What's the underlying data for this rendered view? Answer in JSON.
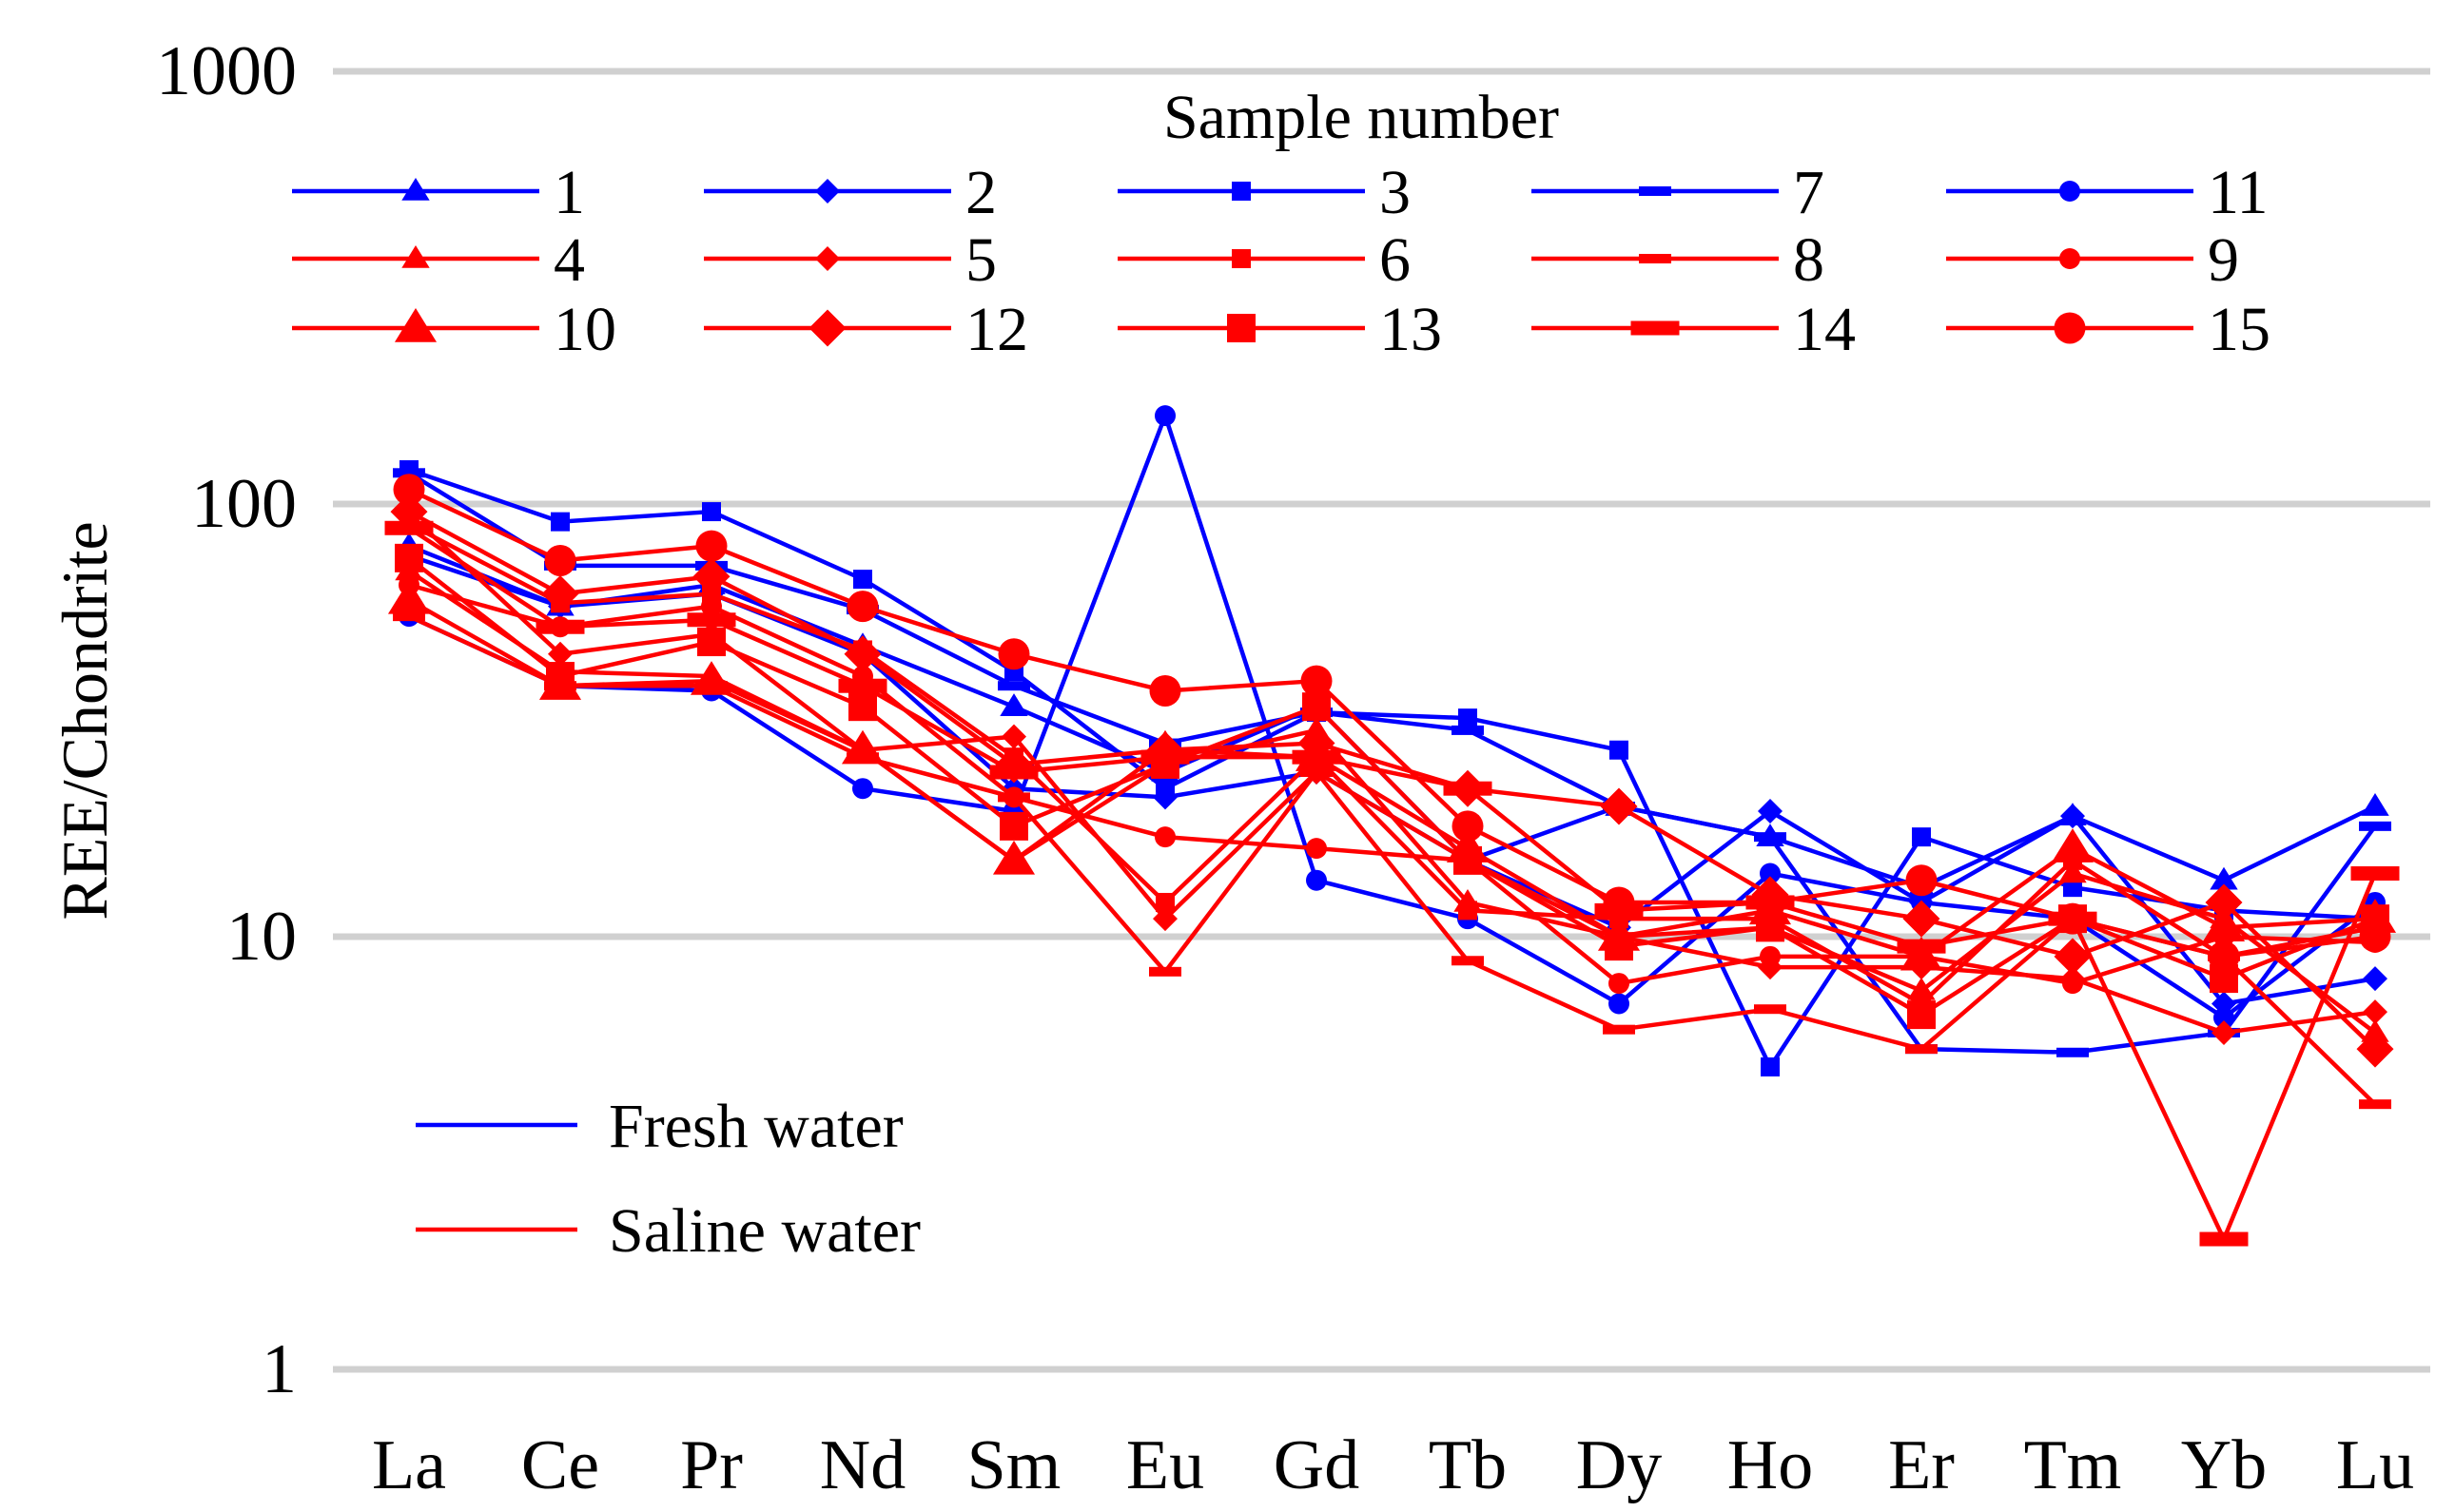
{
  "chart_data": {
    "type": "line",
    "yscale": "log",
    "ylabel": "REE/Chondrite",
    "xlabel": "",
    "ylim": [
      1,
      1000
    ],
    "y_ticks": [
      "1",
      "10",
      "100",
      "1000"
    ],
    "grid": "horizontal",
    "categories": [
      "La",
      "Ce",
      "Pr",
      "Nd",
      "Sm",
      "Eu",
      "Gd",
      "Tb",
      "Dy",
      "Ho",
      "Er",
      "Tm",
      "Yb",
      "Lu"
    ],
    "legend_title": "Sample number",
    "group_legend": [
      {
        "label": "Fresh water",
        "color": "#0000FF"
      },
      {
        "label": "Saline water",
        "color": "#FF0000"
      }
    ],
    "series": [
      {
        "name": "1",
        "group": "fresh",
        "color": "#0000FF",
        "marker": "triangle",
        "size": "small",
        "values": [
          80,
          58,
          65,
          47,
          34,
          24,
          34,
          15,
          20,
          17,
          13,
          19,
          13.5,
          20
        ]
      },
      {
        "name": "2",
        "group": "fresh",
        "color": "#0000FF",
        "marker": "diamond",
        "size": "small",
        "values": [
          76,
          58,
          62,
          45,
          22,
          21,
          24,
          15,
          10.5,
          19.5,
          12,
          19,
          7,
          8
        ]
      },
      {
        "name": "3",
        "group": "fresh",
        "color": "#0000FF",
        "marker": "square",
        "size": "small",
        "values": [
          120,
          91,
          96,
          67,
          41,
          22,
          33,
          32,
          27,
          5,
          17,
          13,
          11.5,
          11
        ]
      },
      {
        "name": "7",
        "group": "fresh",
        "color": "#0000FF",
        "marker": "dash",
        "size": "small",
        "values": [
          118,
          72,
          72,
          57,
          38,
          28,
          33,
          30,
          20,
          17,
          5.5,
          5.4,
          6,
          18
        ]
      },
      {
        "name": "11",
        "group": "fresh",
        "color": "#0000FF",
        "marker": "circle",
        "size": "small",
        "values": [
          55,
          38,
          37,
          22,
          19.5,
          160,
          13.5,
          11,
          7,
          14,
          12,
          11,
          6.5,
          12
        ]
      },
      {
        "name": "4",
        "group": "saline",
        "color": "#FF0000",
        "marker": "triangle",
        "size": "small",
        "values": [
          70,
          41,
          40,
          27,
          15,
          25,
          30,
          12,
          10,
          10.5,
          7.5,
          14,
          11,
          6
        ]
      },
      {
        "name": "5",
        "group": "saline",
        "color": "#FF0000",
        "marker": "diamond",
        "size": "small",
        "values": [
          95,
          45,
          50,
          27,
          29,
          11,
          24,
          15,
          10,
          8.5,
          8.5,
          8,
          6,
          6.7
        ]
      },
      {
        "name": "6",
        "group": "saline",
        "color": "#FF0000",
        "marker": "square",
        "size": "small",
        "values": [
          90,
          59,
          62,
          46,
          26,
          12,
          26,
          11.5,
          11,
          11,
          7,
          15,
          9,
          10.5
        ]
      },
      {
        "name": "8",
        "group": "saline",
        "color": "#FF0000",
        "marker": "dash",
        "size": "small",
        "values": [
          55,
          38,
          38,
          26,
          21,
          8.3,
          24,
          8.8,
          6.1,
          6.8,
          5.5,
          11,
          9,
          4.1
        ]
      },
      {
        "name": "9",
        "group": "saline",
        "color": "#FF0000",
        "marker": "circle",
        "size": "small",
        "values": [
          65,
          52,
          58,
          40,
          21,
          17,
          16,
          15,
          7.8,
          9,
          9,
          7.8,
          10,
          9.7
        ]
      },
      {
        "name": "10",
        "group": "saline",
        "color": "#FF0000",
        "marker": "triangle",
        "size": "large",
        "values": [
          60,
          38,
          39,
          27,
          15,
          27,
          26,
          16,
          10,
          11.5,
          9,
          16,
          10.5,
          11
        ]
      },
      {
        "name": "12",
        "group": "saline",
        "color": "#FF0000",
        "marker": "diamond",
        "size": "large",
        "values": [
          96,
          62,
          68,
          45,
          25,
          27,
          28,
          22,
          20,
          12.5,
          11,
          9,
          12,
          5.5
        ]
      },
      {
        "name": "13",
        "group": "saline",
        "color": "#FF0000",
        "marker": "square",
        "size": "large",
        "values": [
          75,
          40,
          48,
          34,
          18,
          25,
          34,
          15,
          9.5,
          10.5,
          6.6,
          11,
          8,
          11
        ]
      },
      {
        "name": "14",
        "group": "saline",
        "color": "#FF0000",
        "marker": "dash",
        "size": "large",
        "values": [
          88,
          52,
          54,
          38,
          24,
          26,
          26,
          22,
          11.5,
          12,
          9.5,
          11,
          2,
          14
        ]
      },
      {
        "name": "15",
        "group": "saline",
        "color": "#FF0000",
        "marker": "circle",
        "size": "large",
        "values": [
          108,
          74,
          80,
          58,
          45,
          37,
          39,
          18,
          12,
          12,
          13.5,
          11,
          9,
          10
        ]
      }
    ]
  }
}
